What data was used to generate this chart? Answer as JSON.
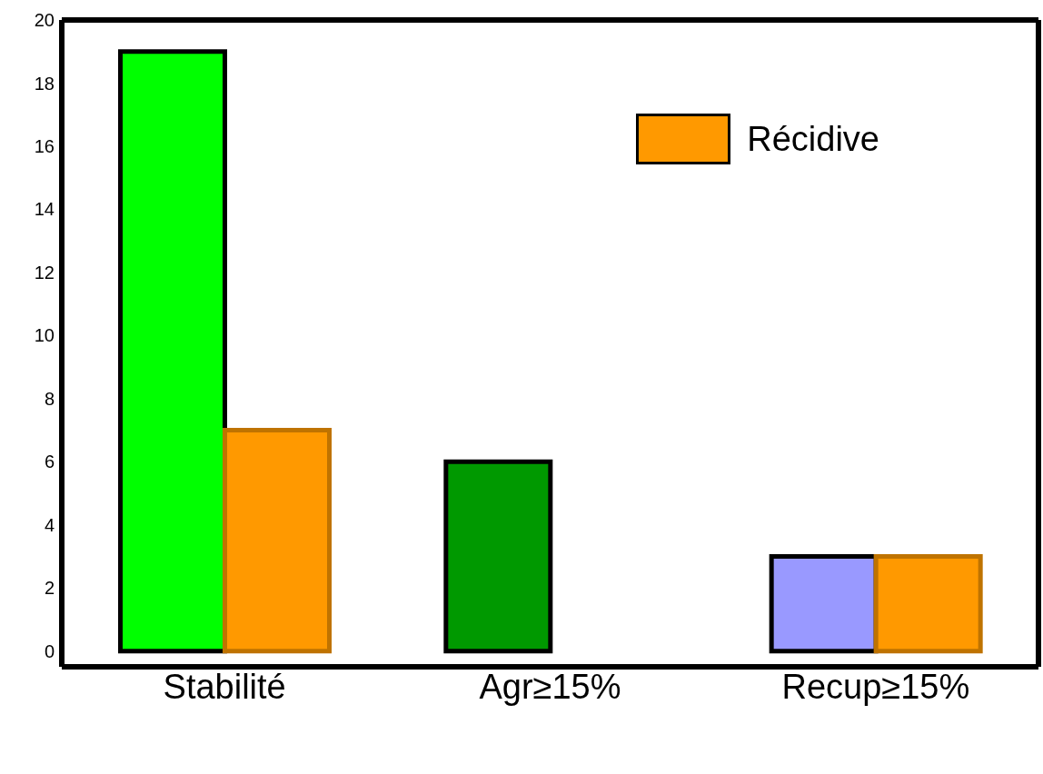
{
  "chart_data": {
    "type": "bar",
    "categories": [
      "Stabilité",
      "Agr≥15%",
      "Recup≥15%"
    ],
    "series": [
      {
        "colors": [
          "#00ff00",
          "#009900",
          "#9999ff"
        ],
        "values": [
          19,
          6,
          3
        ]
      },
      {
        "name": "Récidive",
        "color": "#ff9900",
        "values": [
          7,
          null,
          3
        ]
      }
    ],
    "ylim": [
      -0.5,
      20
    ],
    "yticks": [
      0,
      2,
      4,
      6,
      8,
      10,
      12,
      14,
      16,
      18,
      20
    ],
    "grid": false,
    "legend": "top right"
  }
}
